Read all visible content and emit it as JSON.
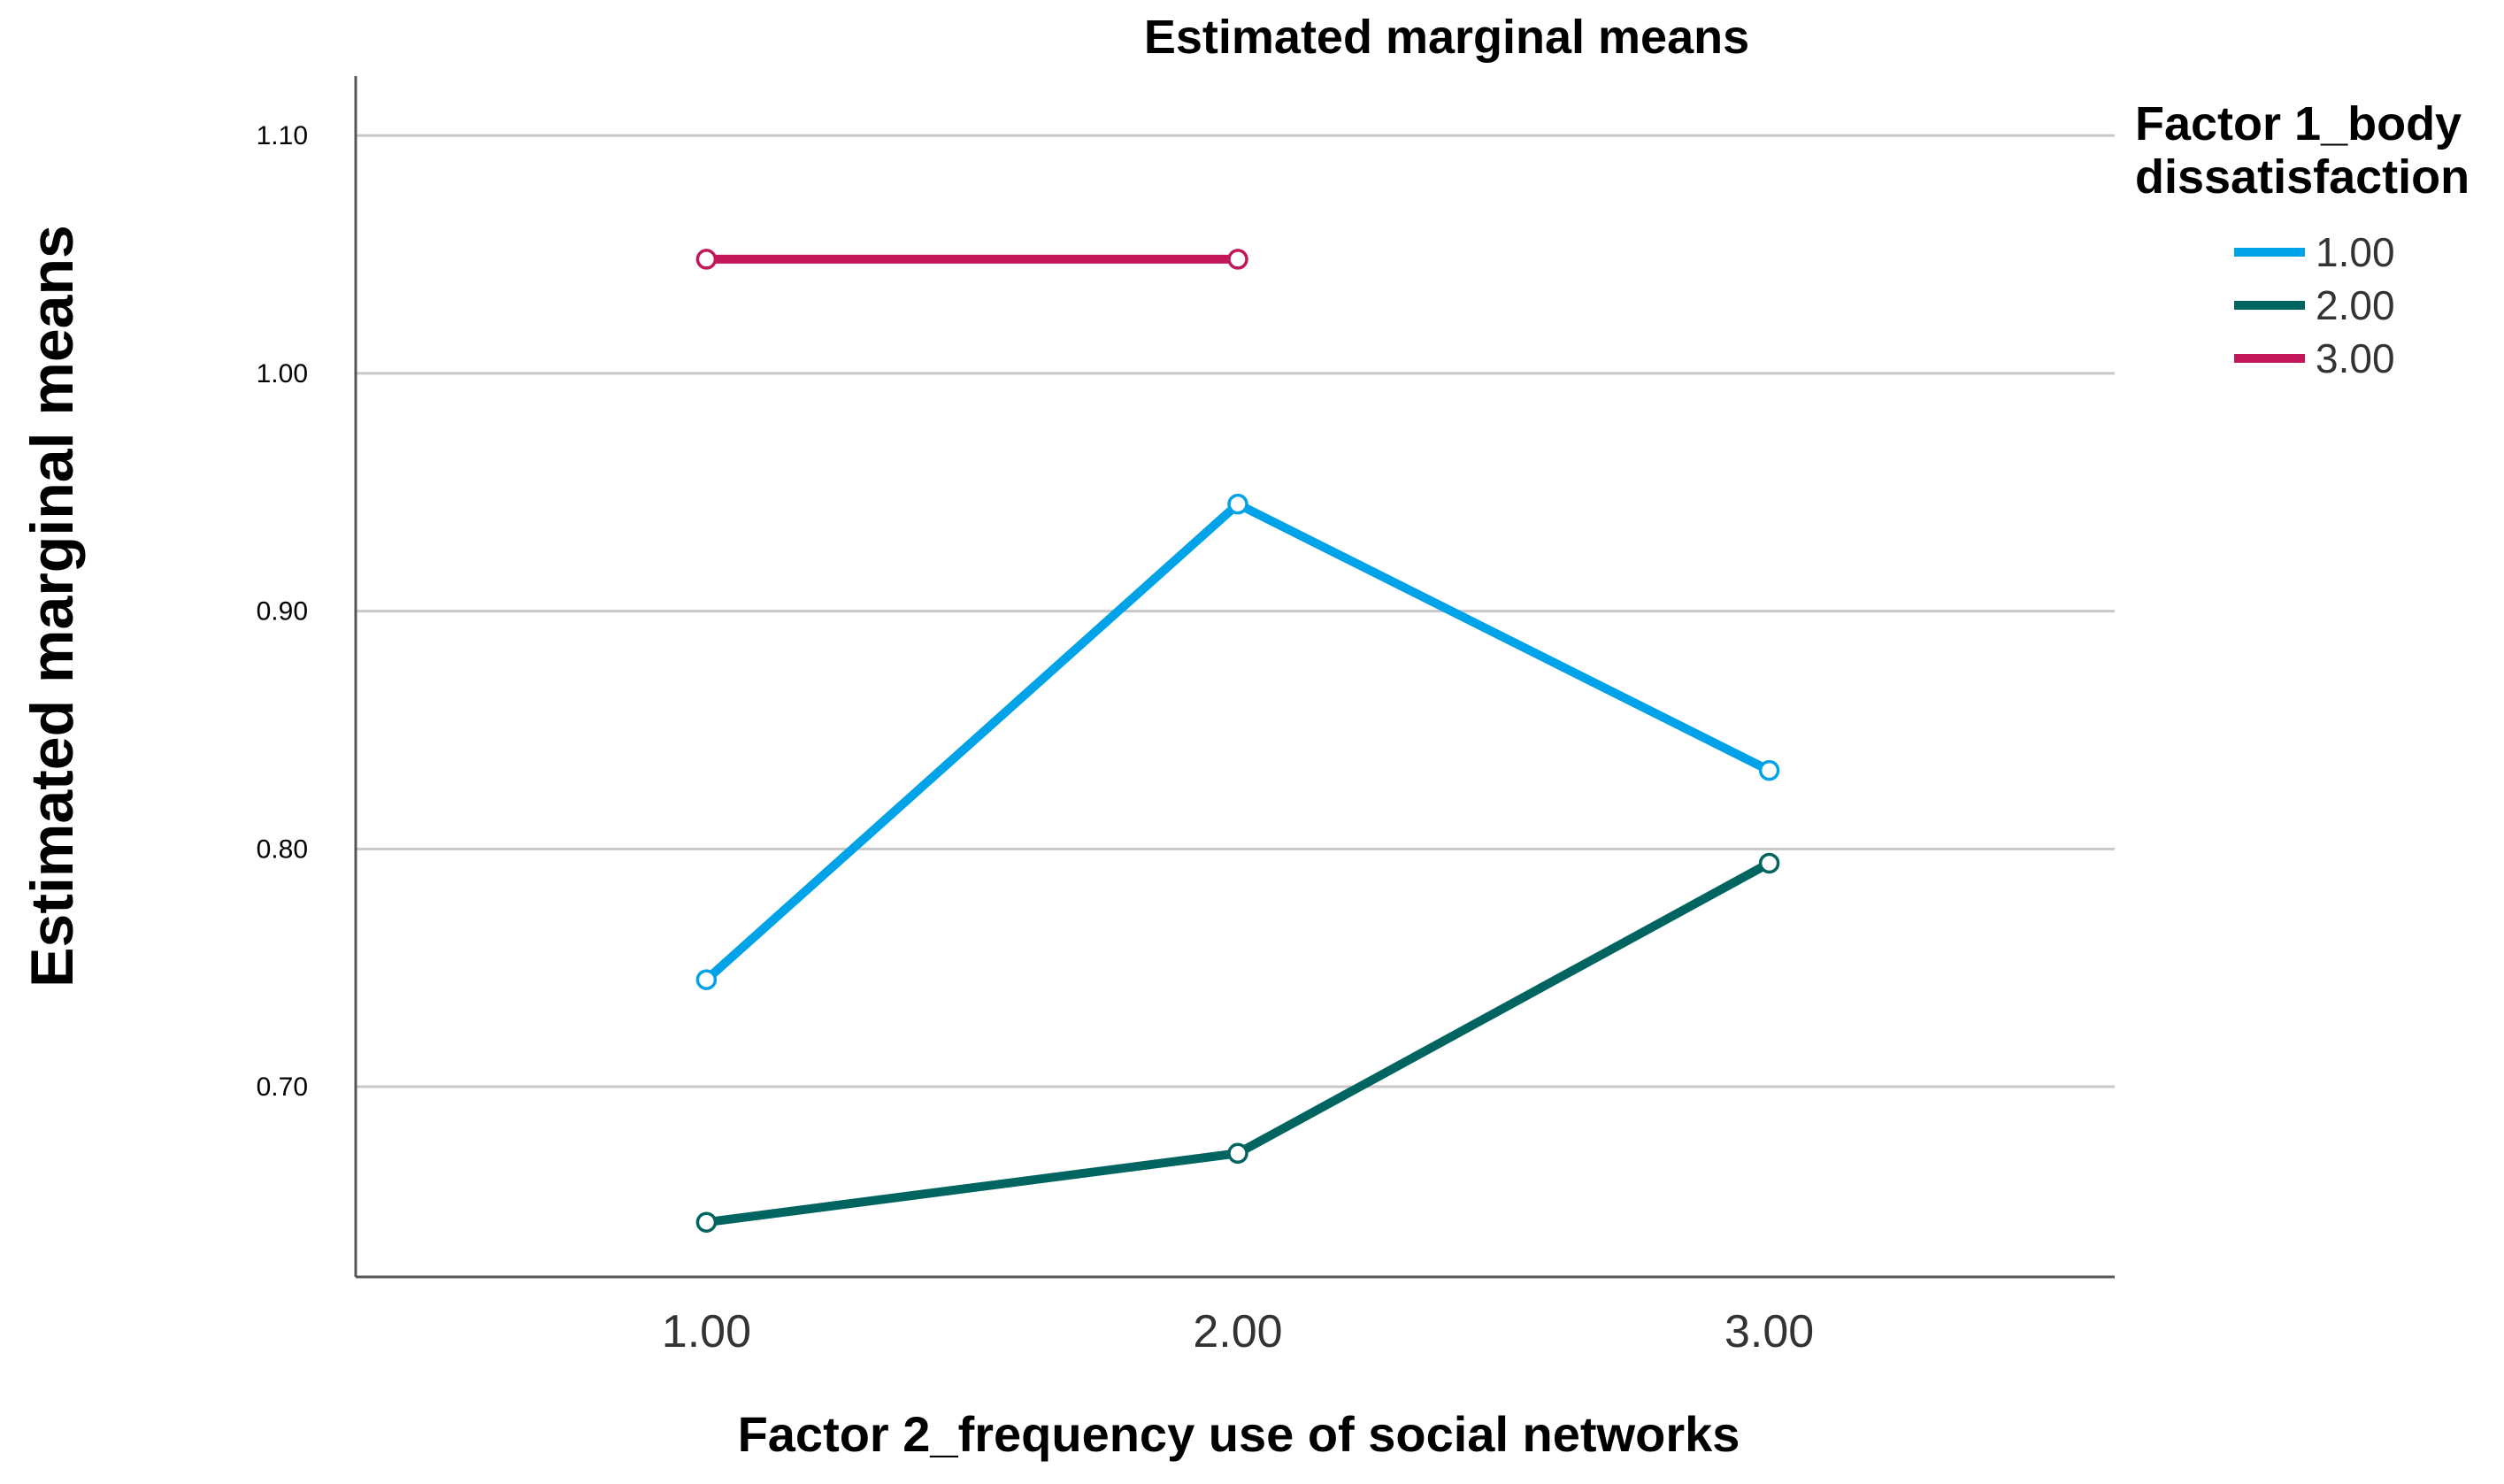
{
  "chart_data": {
    "type": "line",
    "title": "Estimated marginal means",
    "xlabel": "Factor 2_frequency use of social networks",
    "ylabel": "Estimated marginal means",
    "categories": [
      "1.00",
      "2.00",
      "3.00"
    ],
    "x": [
      1,
      2,
      3
    ],
    "xlim": [
      0.34,
      3.65
    ],
    "ylim": [
      0.62,
      1.125
    ],
    "yticks": [
      0.7,
      0.8,
      0.9,
      1.0,
      1.1
    ],
    "ytick_labels": [
      "0.70",
      "0.80",
      "0.90",
      "1.00",
      "1.10"
    ],
    "grid": true,
    "legend": {
      "title_line1": "Factor 1_body",
      "title_line2": "dissatisfaction",
      "placement": "right"
    },
    "series": [
      {
        "name": "1.00",
        "color": "#00a2e8",
        "values": [
          0.745,
          0.945,
          0.833
        ]
      },
      {
        "name": "2.00",
        "color": "#006461",
        "values": [
          0.643,
          0.672,
          0.794
        ]
      },
      {
        "name": "3.00",
        "color": "#c2185b",
        "values": [
          1.048,
          1.048,
          null
        ]
      }
    ]
  }
}
